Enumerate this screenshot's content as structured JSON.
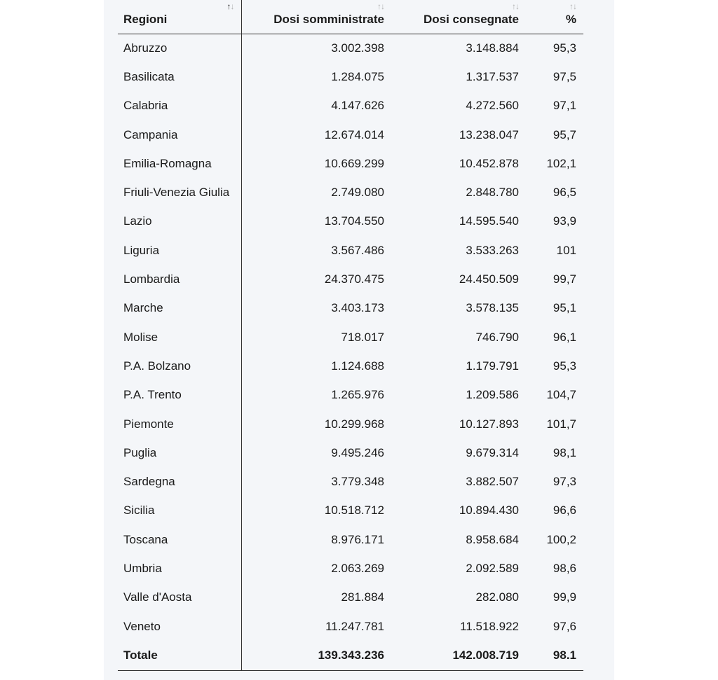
{
  "table": {
    "headers": {
      "region": "Regioni",
      "administered": "Dosi somministrate",
      "delivered": "Dosi consegnate",
      "percent": "%"
    },
    "sort_glyphs": {
      "up": "↑",
      "down": "↓"
    },
    "rows": [
      {
        "region": "Abruzzo",
        "administered": "3.002.398",
        "delivered": "3.148.884",
        "percent": "95,3"
      },
      {
        "region": "Basilicata",
        "administered": "1.284.075",
        "delivered": "1.317.537",
        "percent": "97,5"
      },
      {
        "region": "Calabria",
        "administered": "4.147.626",
        "delivered": "4.272.560",
        "percent": "97,1"
      },
      {
        "region": "Campania",
        "administered": "12.674.014",
        "delivered": "13.238.047",
        "percent": "95,7"
      },
      {
        "region": "Emilia-Romagna",
        "administered": "10.669.299",
        "delivered": "10.452.878",
        "percent": "102,1"
      },
      {
        "region": "Friuli-Venezia Giulia",
        "administered": "2.749.080",
        "delivered": "2.848.780",
        "percent": "96,5"
      },
      {
        "region": "Lazio",
        "administered": "13.704.550",
        "delivered": "14.595.540",
        "percent": "93,9"
      },
      {
        "region": "Liguria",
        "administered": "3.567.486",
        "delivered": "3.533.263",
        "percent": "101"
      },
      {
        "region": "Lombardia",
        "administered": "24.370.475",
        "delivered": "24.450.509",
        "percent": "99,7"
      },
      {
        "region": "Marche",
        "administered": "3.403.173",
        "delivered": "3.578.135",
        "percent": "95,1"
      },
      {
        "region": "Molise",
        "administered": "718.017",
        "delivered": "746.790",
        "percent": "96,1"
      },
      {
        "region": "P.A. Bolzano",
        "administered": "1.124.688",
        "delivered": "1.179.791",
        "percent": "95,3"
      },
      {
        "region": "P.A. Trento",
        "administered": "1.265.976",
        "delivered": "1.209.586",
        "percent": "104,7"
      },
      {
        "region": "Piemonte",
        "administered": "10.299.968",
        "delivered": "10.127.893",
        "percent": "101,7"
      },
      {
        "region": "Puglia",
        "administered": "9.495.246",
        "delivered": "9.679.314",
        "percent": "98,1"
      },
      {
        "region": "Sardegna",
        "administered": "3.779.348",
        "delivered": "3.882.507",
        "percent": "97,3"
      },
      {
        "region": "Sicilia",
        "administered": "10.518.712",
        "delivered": "10.894.430",
        "percent": "96,6"
      },
      {
        "region": "Toscana",
        "administered": "8.976.171",
        "delivered": "8.958.684",
        "percent": "100,2"
      },
      {
        "region": "Umbria",
        "administered": "2.063.269",
        "delivered": "2.092.589",
        "percent": "98,6"
      },
      {
        "region": "Valle d'Aosta",
        "administered": "281.884",
        "delivered": "282.080",
        "percent": "99,9"
      },
      {
        "region": "Veneto",
        "administered": "11.247.781",
        "delivered": "11.518.922",
        "percent": "97,6"
      }
    ],
    "total": {
      "region": "Totale",
      "administered": "139.343.236",
      "delivered": "142.008.719",
      "percent": "98.1"
    }
  }
}
